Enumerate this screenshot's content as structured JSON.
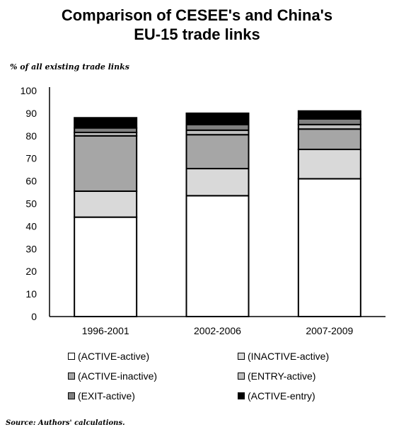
{
  "title_lines": [
    "Comparison of CESEE's and China's",
    "EU-15 trade links"
  ],
  "chart_data": {
    "type": "bar",
    "stacked": true,
    "title": "Comparison of CESEE's and China's EU-15 trade links",
    "ylabel": "% of all existing trade links",
    "ylim": [
      0,
      100
    ],
    "yticks": [
      0,
      10,
      20,
      30,
      40,
      50,
      60,
      70,
      80,
      90,
      100
    ],
    "grid": false,
    "legend_position": "bottom",
    "categories": [
      "1996-2001",
      "2002-2006",
      "2007-2009"
    ],
    "series": [
      {
        "name": "(ACTIVE-active)",
        "color": "#ffffff",
        "values": [
          44,
          53.5,
          61
        ]
      },
      {
        "name": "(INACTIVE-active)",
        "color": "#d9d9d9",
        "values": [
          11.5,
          12,
          13
        ]
      },
      {
        "name": "(ACTIVE-inactive)",
        "color": "#a6a6a6",
        "values": [
          24.5,
          15,
          9
        ]
      },
      {
        "name": "(ENTRY-active)",
        "color": "#bfbfbf",
        "values": [
          1.5,
          2,
          2
        ]
      },
      {
        "name": "(EXIT-active)",
        "color": "#808080",
        "values": [
          2,
          2.5,
          2.5
        ]
      },
      {
        "name": "(ACTIVE-entry)",
        "color": "#000000",
        "values": [
          4.5,
          5,
          3.5
        ]
      }
    ]
  },
  "source": "Source: Authors' calculations."
}
